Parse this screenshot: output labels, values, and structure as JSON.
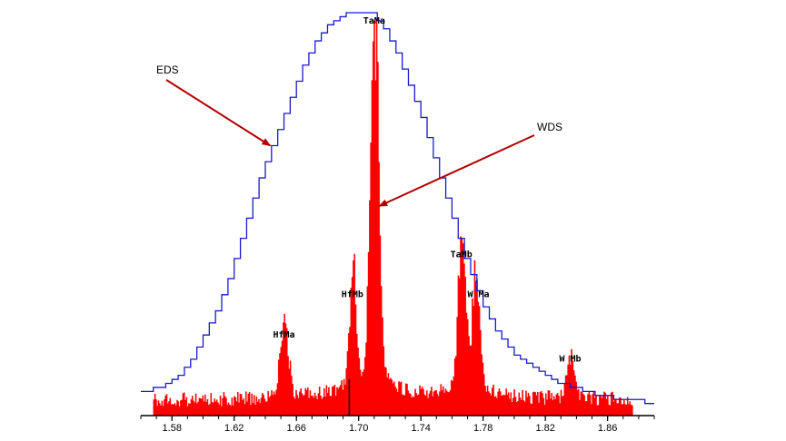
{
  "chart_data": {
    "type": "area",
    "title": "",
    "xlabel": "",
    "ylabel": "",
    "xlim": [
      1.56,
      1.89
    ],
    "ylim": [
      0,
      1.0
    ],
    "x_ticks": [
      1.58,
      1.62,
      1.66,
      1.7,
      1.74,
      1.78,
      1.82,
      1.86
    ],
    "x_tick_labels": [
      "1.58",
      "1.62",
      "1.66",
      "1.70",
      "1.74",
      "1.78",
      "1.82",
      "1.86"
    ],
    "grid": false,
    "legend": "none",
    "series": [
      {
        "name": "EDS",
        "type": "step-line",
        "color": "#1a1acc",
        "x": [
          1.56,
          1.564,
          1.568,
          1.572,
          1.576,
          1.58,
          1.584,
          1.588,
          1.592,
          1.596,
          1.6,
          1.604,
          1.608,
          1.612,
          1.616,
          1.62,
          1.624,
          1.628,
          1.632,
          1.636,
          1.64,
          1.644,
          1.648,
          1.652,
          1.656,
          1.66,
          1.664,
          1.668,
          1.672,
          1.676,
          1.68,
          1.684,
          1.688,
          1.692,
          1.696,
          1.7,
          1.704,
          1.708,
          1.712,
          1.716,
          1.72,
          1.724,
          1.728,
          1.732,
          1.736,
          1.74,
          1.744,
          1.748,
          1.752,
          1.756,
          1.76,
          1.764,
          1.768,
          1.772,
          1.776,
          1.78,
          1.784,
          1.788,
          1.792,
          1.796,
          1.8,
          1.804,
          1.808,
          1.812,
          1.816,
          1.82,
          1.824,
          1.828,
          1.832,
          1.836,
          1.84,
          1.844,
          1.848,
          1.852,
          1.856,
          1.86,
          1.864,
          1.868,
          1.872,
          1.876,
          1.88,
          1.884,
          1.888
        ],
        "values": [
          0.06,
          0.06,
          0.07,
          0.07,
          0.08,
          0.09,
          0.1,
          0.12,
          0.14,
          0.17,
          0.2,
          0.23,
          0.26,
          0.3,
          0.34,
          0.39,
          0.44,
          0.49,
          0.54,
          0.59,
          0.63,
          0.67,
          0.71,
          0.75,
          0.79,
          0.83,
          0.87,
          0.9,
          0.93,
          0.95,
          0.97,
          0.98,
          0.99,
          1.0,
          1.0,
          1.0,
          1.0,
          1.0,
          0.98,
          0.96,
          0.93,
          0.9,
          0.86,
          0.82,
          0.78,
          0.74,
          0.69,
          0.64,
          0.59,
          0.54,
          0.49,
          0.44,
          0.39,
          0.35,
          0.31,
          0.27,
          0.24,
          0.21,
          0.19,
          0.17,
          0.15,
          0.14,
          0.13,
          0.12,
          0.11,
          0.1,
          0.09,
          0.08,
          0.08,
          0.07,
          0.07,
          0.06,
          0.06,
          0.05,
          0.05,
          0.05,
          0.04,
          0.04,
          0.04,
          0.04,
          0.04,
          0.03,
          0.03
        ]
      },
      {
        "name": "WDS",
        "type": "histogram",
        "color": "#ff0000",
        "x_range": [
          1.568,
          1.876
        ],
        "baseline": 0.04,
        "peaks": [
          {
            "x": 1.652,
            "height": 0.18,
            "width": 0.0025
          },
          {
            "x": 1.696,
            "height": 0.28,
            "width": 0.002
          },
          {
            "x": 1.71,
            "height": 0.96,
            "width": 0.0026
          },
          {
            "x": 1.766,
            "height": 0.38,
            "width": 0.0024
          },
          {
            "x": 1.775,
            "height": 0.28,
            "width": 0.0024
          },
          {
            "x": 1.836,
            "height": 0.12,
            "width": 0.0022
          }
        ]
      }
    ],
    "annotations": [
      {
        "text": "TaMa",
        "x": 1.71
      },
      {
        "text": "HfMb",
        "x": 1.696
      },
      {
        "text": "HfMa",
        "x": 1.652
      },
      {
        "text": "TaMb",
        "x": 1.766
      },
      {
        "text": "W Ma",
        "x": 1.777
      },
      {
        "text": "W Mb",
        "x": 1.836
      }
    ],
    "callouts": [
      {
        "text": "EDS",
        "target": "EDS",
        "target_x": 1.642
      },
      {
        "text": "WDS",
        "target": "WDS",
        "target_x": 1.712
      }
    ],
    "marker_line": {
      "x": 1.694,
      "color": "#000000"
    }
  }
}
